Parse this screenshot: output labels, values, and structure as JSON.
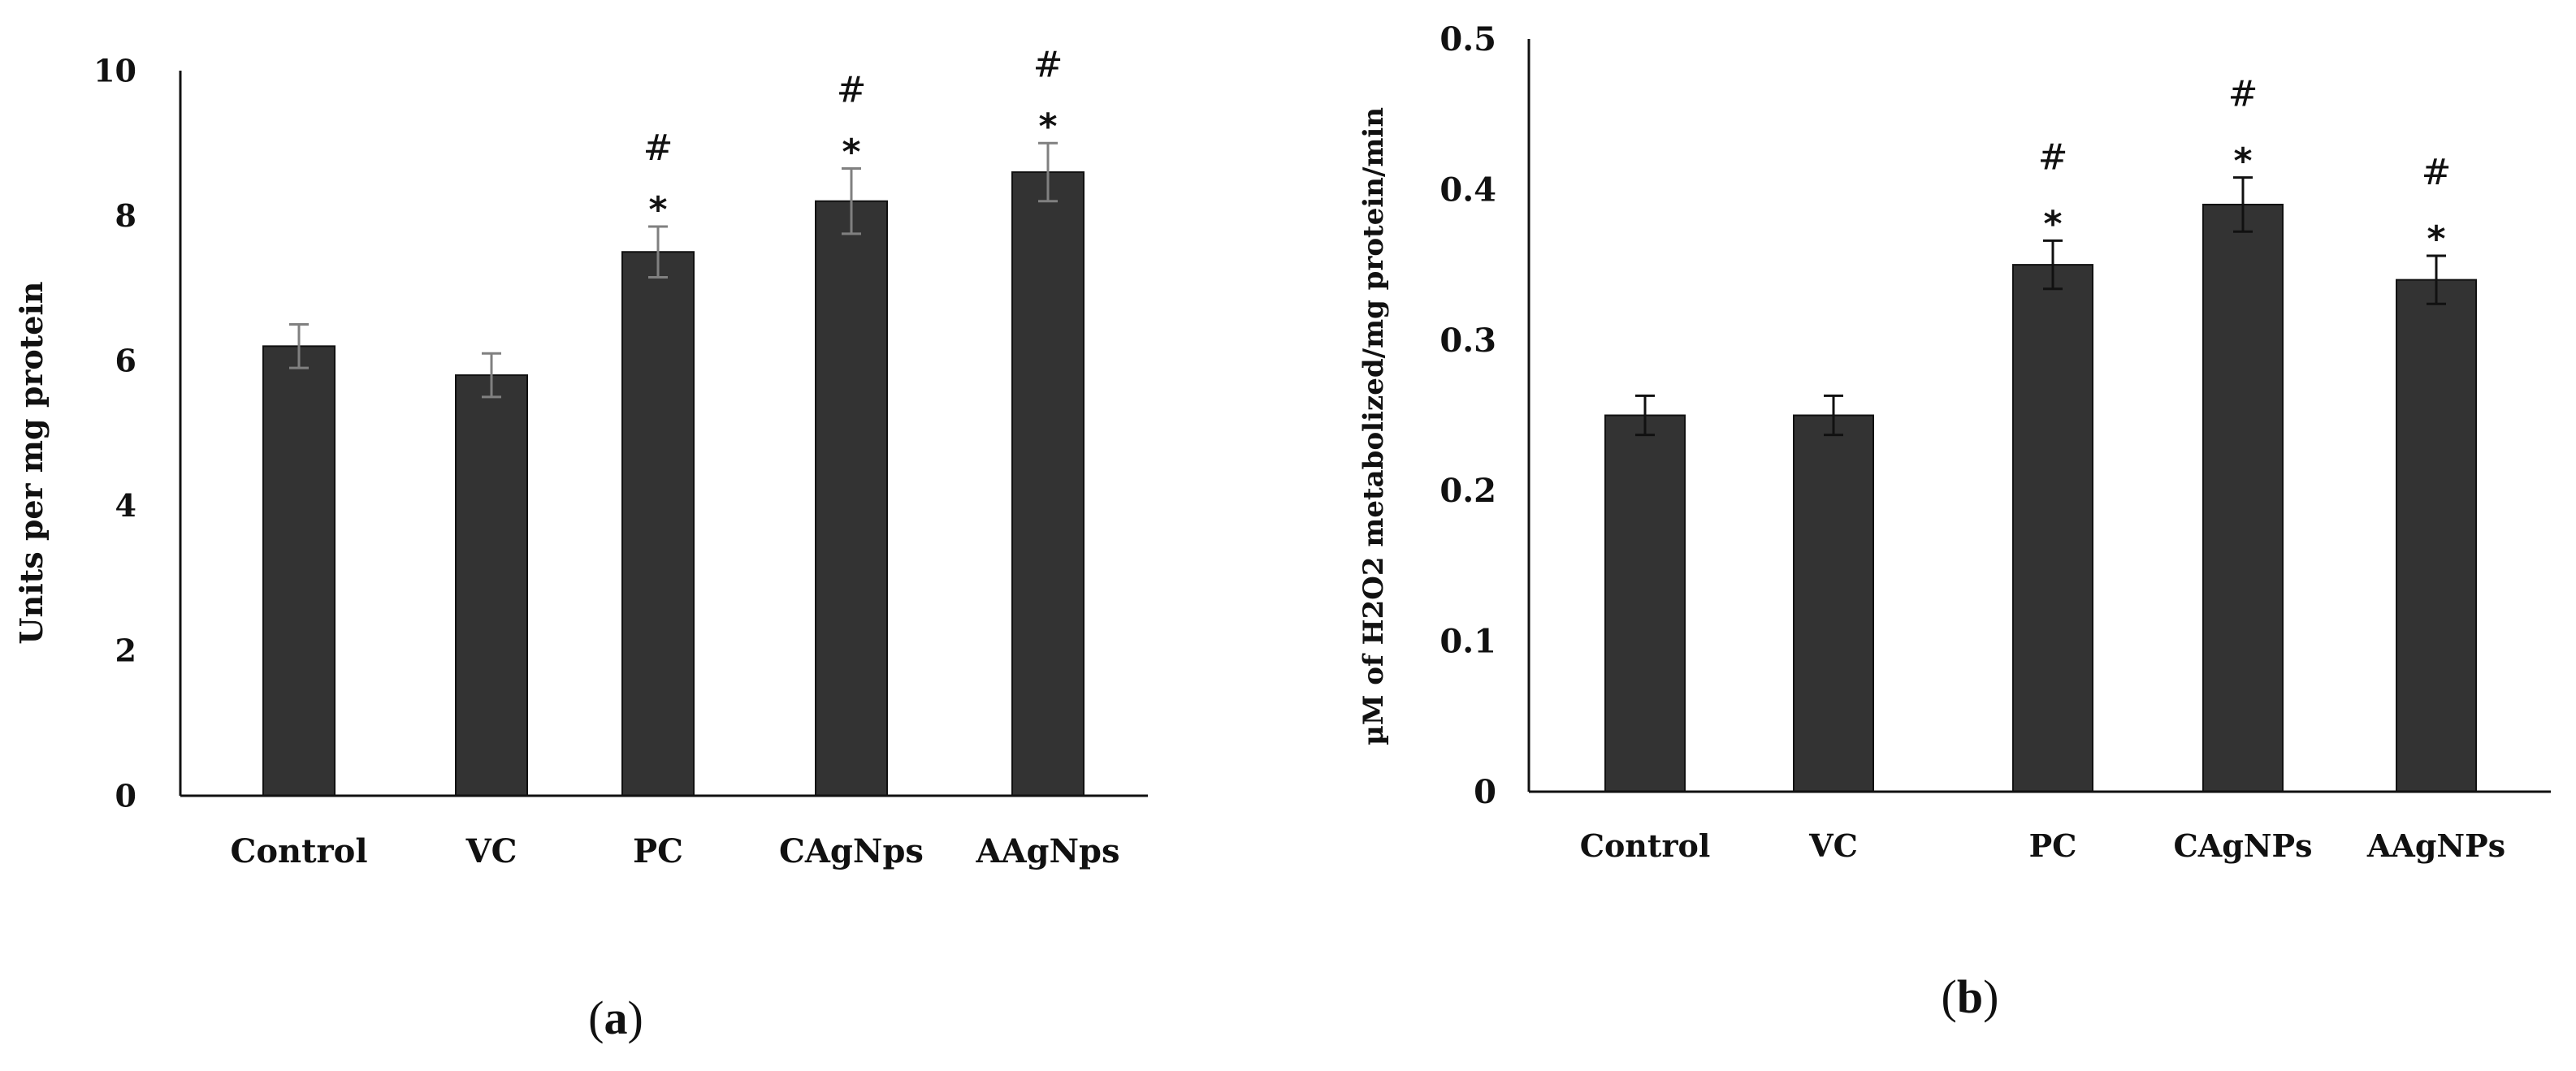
{
  "chart_data": [
    {
      "type": "bar",
      "panel": "(a)",
      "panel_letter": "a",
      "categories": [
        "Control",
        "VC",
        "PC",
        "CAgNps",
        "AAgNps"
      ],
      "values": [
        6.2,
        5.8,
        7.5,
        8.2,
        8.6
      ],
      "errors": [
        0.3,
        0.3,
        0.35,
        0.45,
        0.4
      ],
      "error_color": "#808080",
      "annotations": [
        [],
        [],
        [
          "#",
          "*"
        ],
        [
          "#",
          "*"
        ],
        [
          "#",
          "*"
        ]
      ],
      "ylabel": "Units per mg protein",
      "ylim": [
        0,
        10
      ],
      "yticks": [
        0,
        2,
        4,
        6,
        8,
        10
      ],
      "ytick_labels": [
        "0",
        "2",
        "4",
        "6",
        "8",
        "10"
      ],
      "bar_color": "#333333",
      "grid": false
    },
    {
      "type": "bar",
      "panel": "(b)",
      "panel_letter": "b",
      "categories": [
        "Control",
        "VC",
        "PC",
        "CAgNPs",
        "AAgNPs"
      ],
      "values": [
        0.25,
        0.25,
        0.35,
        0.39,
        0.34
      ],
      "errors": [
        0.013,
        0.013,
        0.016,
        0.018,
        0.016
      ],
      "error_color": "#111111",
      "annotations": [
        [],
        [],
        [
          "#",
          "*"
        ],
        [
          "#",
          "*"
        ],
        [
          "#",
          "*"
        ]
      ],
      "ylabel": "µM of H2O2 metabolized/mg protein/min",
      "ylim": [
        0,
        0.5
      ],
      "yticks": [
        0,
        0.1,
        0.2,
        0.3,
        0.4,
        0.5
      ],
      "ytick_labels": [
        "0",
        "0.1",
        "0.2",
        "0.3",
        "0.4",
        "0.5"
      ],
      "bar_color": "#333333",
      "grid": false
    }
  ]
}
